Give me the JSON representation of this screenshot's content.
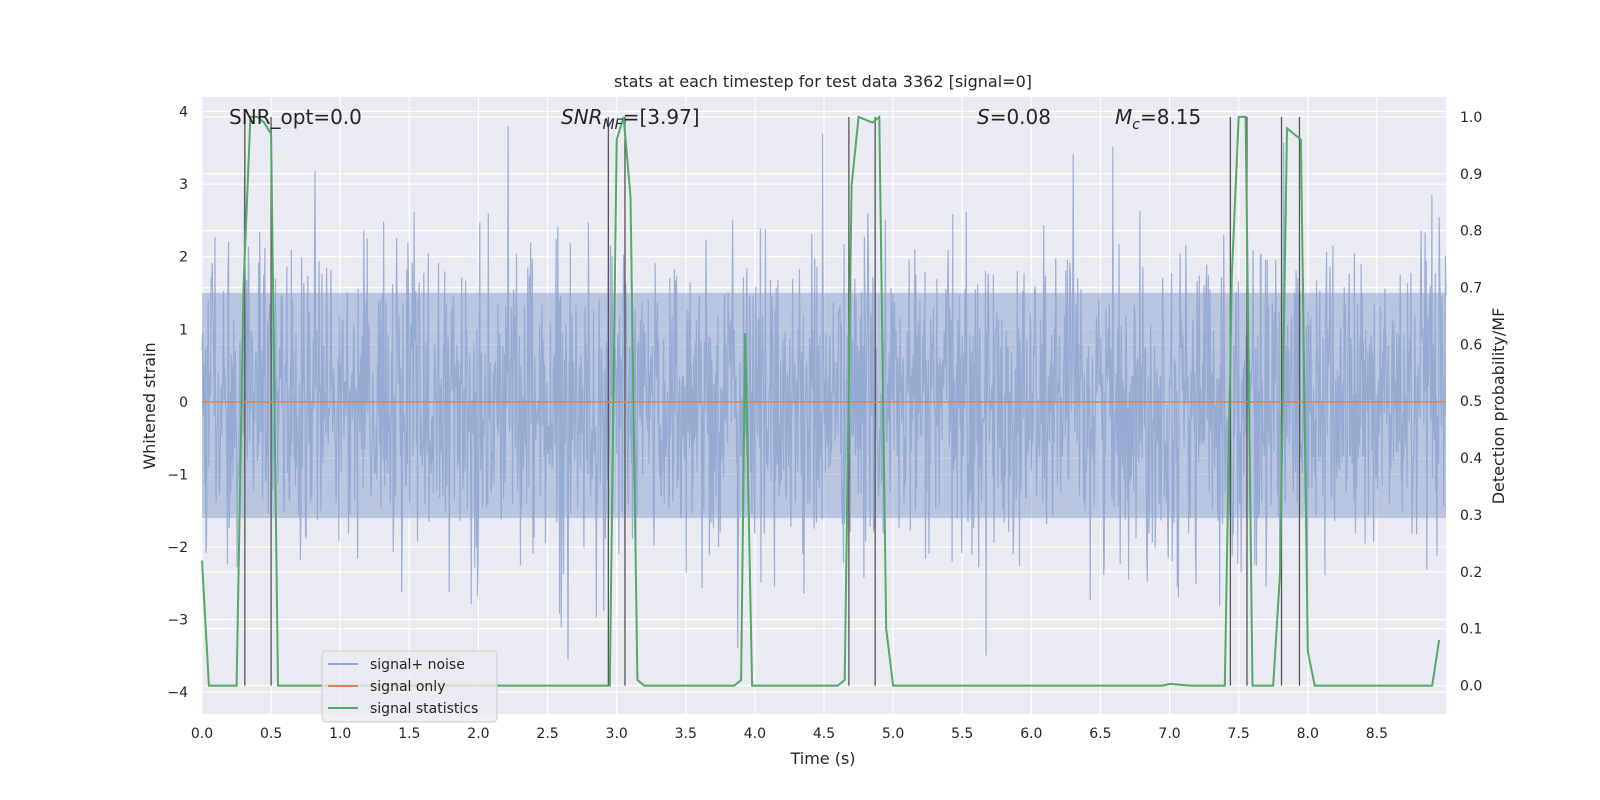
{
  "chart_data": {
    "type": "line",
    "title": "stats at each timestep for test data 3362 [signal=0]",
    "xlabel": "Time (s)",
    "ylabel_left": "Whitened strain",
    "ylabel_right": "Detection probability/MF",
    "xlim": [
      0.0,
      9.0
    ],
    "ylim_left": [
      -4.3,
      4.2
    ],
    "ylim_right": [
      -0.05,
      1.035
    ],
    "xticks": [
      0.0,
      0.5,
      1.0,
      1.5,
      2.0,
      2.5,
      3.0,
      3.5,
      4.0,
      4.5,
      5.0,
      5.5,
      6.0,
      6.5,
      7.0,
      7.5,
      8.0,
      8.5
    ],
    "xtick_labels": [
      "0.0",
      "0.5",
      "1.0",
      "1.5",
      "2.0",
      "2.5",
      "3.0",
      "3.5",
      "4.0",
      "4.5",
      "5.0",
      "5.5",
      "6.0",
      "6.5",
      "7.0",
      "7.5",
      "8.0",
      "8.5"
    ],
    "yticks_left": [
      -4,
      -3,
      -2,
      -1,
      0,
      1,
      2,
      3,
      4
    ],
    "ytick_labels_left": [
      "−4",
      "−3",
      "−2",
      "−1",
      "0",
      "1",
      "2",
      "3",
      "4"
    ],
    "yticks_right": [
      0.0,
      0.1,
      0.2,
      0.3,
      0.4,
      0.5,
      0.6,
      0.7,
      0.8,
      0.9,
      1.0
    ],
    "ytick_labels_right": [
      "0.0",
      "0.1",
      "0.2",
      "0.3",
      "0.4",
      "0.5",
      "0.6",
      "0.7",
      "0.8",
      "0.9",
      "1.0"
    ],
    "annotations": {
      "snr_opt": "SNR_opt=0.0",
      "snr_mf_main": "SNR",
      "snr_mf_sub": "MF",
      "snr_mf_value": "=[3.97]",
      "s_main": "S",
      "s_value": "=0.08",
      "mc_main": "M",
      "mc_sub": "c",
      "mc_value": "=8.15"
    },
    "legend": {
      "position": "lower-left",
      "entries": [
        "signal+ noise",
        "signal only",
        "signal statistics"
      ]
    },
    "series": [
      {
        "name": "signal+ noise",
        "color": "#8fa5cf",
        "kind": "noise",
        "band_core": [
          -1.6,
          1.5
        ],
        "spike_range": [
          -3.9,
          3.8
        ]
      },
      {
        "name": "signal only",
        "color": "#dd8452",
        "x": [
          0.0,
          9.0
        ],
        "y": [
          0.0,
          0.0
        ]
      },
      {
        "name": "signal statistics",
        "color": "#55a868",
        "x": [
          0.0,
          0.05,
          0.25,
          0.3,
          0.35,
          0.4,
          0.45,
          0.5,
          0.55,
          0.7,
          0.8,
          2.95,
          3.0,
          3.05,
          3.1,
          3.15,
          3.2,
          3.3,
          3.85,
          3.9,
          3.93,
          3.98,
          4.05,
          4.35,
          4.6,
          4.65,
          4.7,
          4.75,
          4.85,
          4.9,
          4.95,
          5.0,
          6.6,
          6.7,
          6.95,
          7.0,
          7.15,
          7.4,
          7.45,
          7.5,
          7.55,
          7.6,
          7.65,
          7.75,
          7.8,
          7.85,
          7.9,
          7.95,
          8.0,
          8.05,
          8.1,
          8.7,
          8.9,
          8.95
        ],
        "y": [
          0.22,
          0.0,
          0.0,
          0.7,
          1.0,
          1.0,
          0.99,
          0.97,
          0.0,
          0.0,
          0.0,
          0.0,
          0.96,
          1.0,
          0.86,
          0.01,
          0.0,
          0.0,
          0.0,
          0.01,
          0.62,
          0.0,
          0.0,
          0.0,
          0.0,
          0.01,
          0.88,
          1.0,
          0.99,
          1.0,
          0.1,
          0.0,
          0.0,
          0.0,
          0.0,
          0.003,
          0.0,
          0.0,
          0.72,
          1.0,
          1.0,
          0.0,
          0.0,
          0.0,
          0.2,
          0.98,
          0.97,
          0.96,
          0.06,
          0.0,
          0.0,
          0.0,
          0.0,
          0.08
        ]
      }
    ],
    "vlines_x": [
      0.31,
      0.5,
      2.94,
      3.06,
      4.68,
      4.87,
      7.44,
      7.56,
      7.81,
      7.94
    ]
  }
}
